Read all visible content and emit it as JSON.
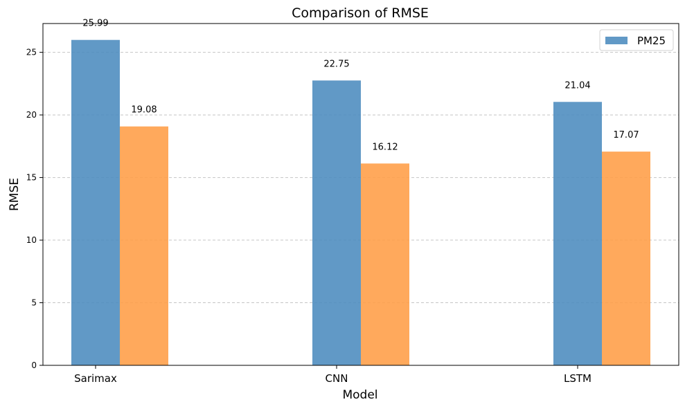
{
  "chart_data": {
    "type": "bar",
    "title": "Comparison of RMSE",
    "xlabel": "Model",
    "ylabel": "RMSE",
    "categories": [
      "Sarimax",
      "CNN",
      "LSTM"
    ],
    "series": [
      {
        "name": "PM25",
        "values": [
          25.99,
          22.75,
          21.04
        ],
        "color": "#4b8bbe",
        "value_labels": [
          "25.99",
          "22.75",
          "21.04"
        ]
      },
      {
        "values": [
          19.08,
          16.12,
          17.07
        ],
        "color": "#ff9d45",
        "value_labels": [
          "19.08",
          "16.12",
          "17.07"
        ]
      }
    ],
    "ylim": [
      0,
      27.3
    ],
    "yticks": [
      0,
      5,
      10,
      15,
      20,
      25
    ],
    "ytick_labels": [
      "0",
      "5",
      "10",
      "15",
      "20",
      "25"
    ],
    "grid": "horizontal dashed",
    "legend": {
      "placement": "top-right",
      "entries": [
        "PM25"
      ]
    }
  }
}
